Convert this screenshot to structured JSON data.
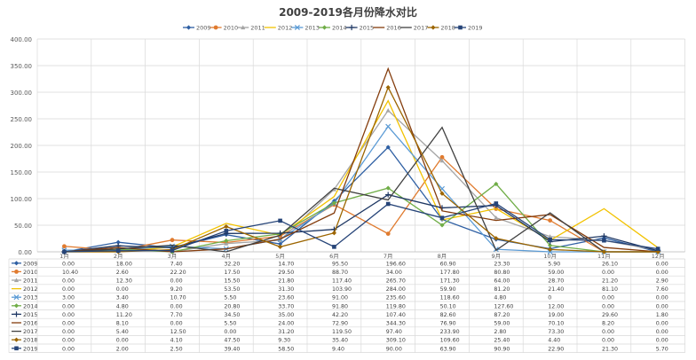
{
  "chart_data": {
    "type": "line",
    "title": "2009-2019各月份降水对比",
    "ylim": [
      0,
      400
    ],
    "yticks": [
      "0.00",
      "50.00",
      "100.00",
      "150.00",
      "200.00",
      "250.00",
      "300.00",
      "350.00",
      "400.00"
    ],
    "ytick_values": [
      0,
      50,
      100,
      150,
      200,
      250,
      300,
      350,
      400
    ],
    "categories": [
      "1月",
      "2月",
      "3月",
      "4月",
      "5月",
      "6月",
      "7月",
      "8月",
      "9月",
      "10月",
      "11月",
      "12月"
    ],
    "legend_position": "top",
    "grid": true,
    "series": [
      {
        "name": "2009",
        "color": "#2e5fa3",
        "marker": "diamond",
        "values": [
          0.0,
          18.0,
          7.4,
          32.2,
          14.7,
          95.5,
          196.6,
          60.9,
          23.3,
          5.9,
          26.1,
          0.0
        ],
        "labels": [
          "0.00",
          "18.00",
          "7.40",
          "32.20",
          "14.70",
          "95.50",
          "196.60",
          "60.90",
          "23.30",
          "5.90",
          "26.10",
          "0.00"
        ]
      },
      {
        "name": "2010",
        "color": "#e07b2f",
        "marker": "circle",
        "values": [
          10.4,
          2.6,
          22.2,
          17.5,
          29.5,
          88.7,
          34.0,
          177.8,
          80.8,
          59.0,
          0.0,
          0.0
        ],
        "labels": [
          "10.40",
          "2.60",
          "22.20",
          "17.50",
          "29.50",
          "88.70",
          "34.00",
          "177.80",
          "80.80",
          "59.00",
          "0.00",
          "0.00"
        ]
      },
      {
        "name": "2011",
        "color": "#a5a5a5",
        "marker": "triangle",
        "values": [
          0.0,
          12.3,
          0.0,
          15.5,
          21.8,
          117.4,
          265.7,
          171.3,
          64.0,
          28.7,
          21.2,
          2.9
        ],
        "labels": [
          "0.00",
          "12.30",
          "0.00",
          "15.50",
          "21.80",
          "117.40",
          "265.70",
          "171.30",
          "64.00",
          "28.70",
          "21.20",
          "2.90"
        ]
      },
      {
        "name": "2012",
        "color": "#f2c200",
        "marker": "none",
        "values": [
          0.0,
          0.0,
          9.2,
          53.5,
          31.3,
          103.9,
          284.0,
          59.9,
          81.2,
          21.4,
          81.1,
          7.6
        ],
        "labels": [
          "0.00",
          "0.00",
          "9.20",
          "53.50",
          "31.30",
          "103.90",
          "284.00",
          "59.90",
          "81.20",
          "21.40",
          "81.10",
          "7.60"
        ]
      },
      {
        "name": "2013",
        "color": "#5b9bd5",
        "marker": "x",
        "values": [
          3.0,
          3.4,
          10.7,
          5.5,
          23.6,
          91.0,
          235.6,
          118.6,
          4.8,
          0,
          0.0,
          0.0
        ],
        "labels": [
          "3.00",
          "3.40",
          "10.70",
          "5.50",
          "23.60",
          "91.00",
          "235.60",
          "118.60",
          "4.80",
          "0",
          "0.00",
          "0.00"
        ]
      },
      {
        "name": "2014",
        "color": "#70ad47",
        "marker": "diamond",
        "values": [
          0.0,
          4.8,
          0.0,
          20.8,
          33.7,
          91.8,
          119.8,
          50.1,
          127.6,
          12.0,
          0.0,
          0.0
        ],
        "labels": [
          "0.00",
          "4.80",
          "0.00",
          "20.80",
          "33.70",
          "91.80",
          "119.80",
          "50.10",
          "127.60",
          "12.00",
          "0.00",
          "0.00"
        ]
      },
      {
        "name": "2015",
        "color": "#1f3864",
        "marker": "plus",
        "values": [
          0.0,
          11.2,
          7.7,
          34.5,
          35.0,
          42.2,
          107.4,
          82.6,
          87.2,
          19.0,
          29.6,
          1.8
        ],
        "labels": [
          "0.00",
          "11.20",
          "7.70",
          "34.50",
          "35.00",
          "42.20",
          "107.40",
          "82.60",
          "87.20",
          "19.00",
          "29.60",
          "1.80"
        ]
      },
      {
        "name": "2016",
        "color": "#843c0c",
        "marker": "none",
        "values": [
          0.0,
          8.1,
          0.0,
          5.5,
          24.0,
          72.9,
          344.3,
          76.9,
          59.0,
          70.1,
          8.2,
          0.0
        ],
        "labels": [
          "0.00",
          "8.10",
          "0.00",
          "5.50",
          "24.00",
          "72.90",
          "344.30",
          "76.90",
          "59.00",
          "70.10",
          "8.20",
          "0.00"
        ]
      },
      {
        "name": "2017",
        "color": "#404040",
        "marker": "none",
        "values": [
          0.0,
          5.4,
          12.5,
          0.0,
          31.2,
          119.5,
          97.4,
          233.9,
          2.8,
          73.3,
          0.0,
          0.0
        ],
        "labels": [
          "0.00",
          "5.40",
          "12.50",
          "0.00",
          "31.20",
          "119.50",
          "97.40",
          "233.90",
          "2.80",
          "73.30",
          "0.00",
          "0.00"
        ]
      },
      {
        "name": "2018",
        "color": "#9c6500",
        "marker": "diamond",
        "values": [
          0.0,
          0.0,
          4.1,
          47.5,
          9.3,
          35.4,
          309.1,
          109.6,
          25.4,
          4.4,
          0.0,
          0.0
        ],
        "labels": [
          "0.00",
          "0.00",
          "4.10",
          "47.50",
          "9.30",
          "35.40",
          "309.10",
          "109.60",
          "25.40",
          "4.40",
          "0.00",
          "0.00"
        ]
      },
      {
        "name": "2019",
        "color": "#264478",
        "marker": "square",
        "values": [
          0.0,
          2.0,
          2.5,
          39.4,
          58.5,
          9.4,
          90.0,
          63.9,
          90.9,
          22.9,
          21.3,
          5.7
        ],
        "labels": [
          "0.00",
          "2.00",
          "2.50",
          "39.40",
          "58.50",
          "9.40",
          "90.00",
          "63.90",
          "90.90",
          "22.90",
          "21.30",
          "5.70"
        ]
      }
    ]
  }
}
